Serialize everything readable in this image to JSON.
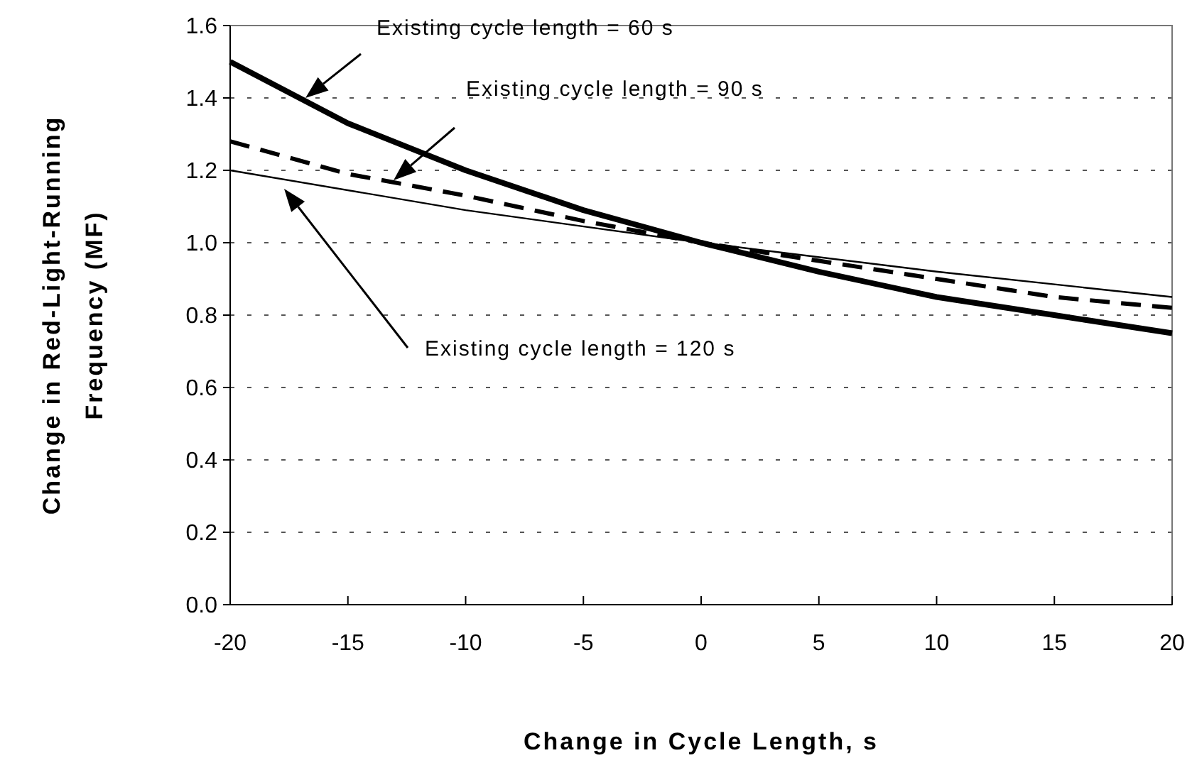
{
  "chart_data": {
    "type": "line",
    "xlabel": "Change in Cycle Length, s",
    "ylabel": "Change in Red-Light-Running\nFrequency (MF)",
    "xlim": [
      -20,
      20
    ],
    "xticks": [
      -20,
      -15,
      -10,
      -5,
      0,
      5,
      10,
      15,
      20
    ],
    "ylim": [
      0,
      1.6
    ],
    "yticks": [
      {
        "value": 0,
        "label": "0.0"
      },
      {
        "value": 0.2,
        "label": "0.2"
      },
      {
        "value": 0.4,
        "label": "0.4"
      },
      {
        "value": 0.6,
        "label": "0.6"
      },
      {
        "value": 0.8,
        "label": "0.8"
      },
      {
        "value": 1,
        "label": "1.0"
      },
      {
        "value": 1.2,
        "label": "1.2"
      },
      {
        "value": 1.4,
        "label": "1.4"
      },
      {
        "value": 1.6,
        "label": "1.6"
      }
    ],
    "grid": "y",
    "series": [
      {
        "color": "#000000",
        "line_style": "solid",
        "x": [
          -20,
          -15,
          -10,
          -5,
          0,
          5,
          10,
          15,
          20
        ],
        "values": [
          1.5,
          1.33,
          1.2,
          1.09,
          1.0,
          0.92,
          0.85,
          0.8,
          0.75
        ]
      },
      {
        "color": "#000000",
        "line_style": "dashed",
        "x": [
          -20,
          -15,
          -10,
          -5,
          0,
          5,
          10,
          15,
          20
        ],
        "values": [
          1.28,
          1.19,
          1.13,
          1.06,
          1.0,
          0.95,
          0.9,
          0.85,
          0.82
        ]
      },
      {
        "color": "#000000",
        "line_style": "solid",
        "x": [
          -20,
          -10,
          0,
          10,
          20
        ],
        "values": [
          1.2,
          1.09,
          1.0,
          0.92,
          0.85
        ]
      }
    ],
    "annotations": [
      "Existing cycle length = 60 s",
      "Existing cycle length = 90 s",
      "Existing cycle length = 120 s"
    ]
  }
}
